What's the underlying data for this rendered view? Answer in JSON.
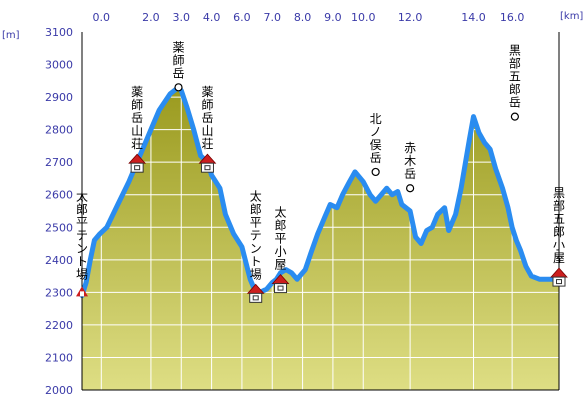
{
  "colors": {
    "background": "#ffffff",
    "plot_background": "#ffffff",
    "area_fill_top": "#9a9a1e",
    "area_fill_bottom": "#dede84",
    "profile_line": "#2a8cf0",
    "axis_text": "#3a3aa8",
    "grid": "#ffffff",
    "hut_marker": "#cc1e1e",
    "peak_marker_stroke": "#000000"
  },
  "chart_data": {
    "type": "area",
    "x_unit": "[km]",
    "y_unit": "[m]",
    "xlim": [
      -0.7,
      16.6
    ],
    "ylim": [
      2000,
      3100
    ],
    "x_ticks": [
      {
        "value": 0,
        "label": "0.0"
      },
      {
        "value": 1.8,
        "label": "2.0"
      },
      {
        "value": 2.9,
        "label": "3.0"
      },
      {
        "value": 4.0,
        "label": "4.0"
      },
      {
        "value": 5.1,
        "label": "6.0"
      },
      {
        "value": 6.2,
        "label": "7.0"
      },
      {
        "value": 7.3,
        "label": "8.0"
      },
      {
        "value": 8.4,
        "label": "9.0"
      },
      {
        "value": 9.5,
        "label": "10.0"
      },
      {
        "value": 11.2,
        "label": "12.0"
      },
      {
        "value": 13.5,
        "label": "14.0"
      },
      {
        "value": 14.9,
        "label": "16.0"
      }
    ],
    "y_ticks": [
      2000,
      2100,
      2200,
      2300,
      2400,
      2500,
      2600,
      2700,
      2800,
      2900,
      3000,
      3100
    ],
    "x": [
      -0.7,
      -0.55,
      -0.4,
      -0.25,
      -0.05,
      0.2,
      0.6,
      1.0,
      1.3,
      1.6,
      1.8,
      2.1,
      2.5,
      2.8,
      2.9,
      3.1,
      3.35,
      3.6,
      3.85,
      4.0,
      4.3,
      4.5,
      4.8,
      5.1,
      5.4,
      5.6,
      5.75,
      6.0,
      6.2,
      6.35,
      6.5,
      6.7,
      6.9,
      7.1,
      7.4,
      7.6,
      7.85,
      8.1,
      8.3,
      8.55,
      8.75,
      9.0,
      9.2,
      9.5,
      9.75,
      9.95,
      10.15,
      10.35,
      10.55,
      10.75,
      10.9,
      11.2,
      11.4,
      11.6,
      11.8,
      12.0,
      12.2,
      12.45,
      12.6,
      12.85,
      13.05,
      13.35,
      13.5,
      13.7,
      13.9,
      14.1,
      14.3,
      14.55,
      14.75,
      14.9,
      15.05,
      15.2,
      15.4,
      15.6,
      15.9,
      16.1,
      16.35,
      16.6
    ],
    "elevation": [
      2290,
      2330,
      2400,
      2460,
      2480,
      2500,
      2570,
      2640,
      2700,
      2760,
      2800,
      2860,
      2910,
      2930,
      2920,
      2870,
      2800,
      2720,
      2700,
      2660,
      2620,
      2540,
      2480,
      2440,
      2340,
      2300,
      2300,
      2310,
      2330,
      2340,
      2360,
      2370,
      2360,
      2340,
      2370,
      2420,
      2480,
      2530,
      2570,
      2560,
      2600,
      2640,
      2670,
      2640,
      2600,
      2580,
      2600,
      2620,
      2600,
      2610,
      2570,
      2550,
      2470,
      2450,
      2490,
      2500,
      2540,
      2560,
      2490,
      2540,
      2620,
      2770,
      2840,
      2790,
      2760,
      2740,
      2680,
      2620,
      2560,
      2500,
      2460,
      2430,
      2380,
      2350,
      2340,
      2340,
      2340,
      2340
    ]
  },
  "points": [
    {
      "id": "taro-tent",
      "label": "太郎平テント場",
      "x": -0.7,
      "elev": 2300,
      "kind": "tent"
    },
    {
      "id": "yakushi-sanso-west",
      "label": "薬師岳山荘",
      "x": 1.3,
      "elev": 2700,
      "kind": "hut"
    },
    {
      "id": "yakushidake",
      "label": "薬師岳",
      "x": 2.8,
      "elev": 2930,
      "kind": "peak"
    },
    {
      "id": "yakushi-sanso-east",
      "label": "薬師岳山荘",
      "x": 3.85,
      "elev": 2700,
      "kind": "hut"
    },
    {
      "id": "taro-tent-2",
      "label": "太郎平テント場",
      "x": 5.6,
      "elev": 2300,
      "kind": "hut"
    },
    {
      "id": "taro-goya",
      "label": "太郎平小屋",
      "x": 6.5,
      "elev": 2330,
      "kind": "hut"
    },
    {
      "id": "kitanomata",
      "label": "北ノ俣岳",
      "x": 9.95,
      "elev": 2670,
      "kind": "peak"
    },
    {
      "id": "akagi",
      "label": "赤木岳",
      "x": 11.2,
      "elev": 2620,
      "kind": "peak"
    },
    {
      "id": "kurobegoro",
      "label": "黒部五郎岳",
      "x": 15.0,
      "elev": 2840,
      "kind": "peak"
    },
    {
      "id": "kurobegoro-goya",
      "label": "黒部五郎小屋",
      "x": 16.6,
      "elev": 2350,
      "kind": "hut"
    }
  ]
}
